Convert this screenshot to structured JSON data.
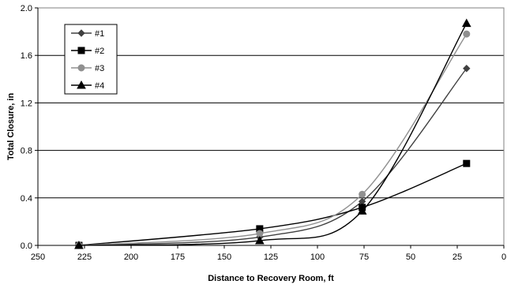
{
  "chart_data": {
    "type": "scatter",
    "title": "",
    "xlabel": "Distance to Recovery Room, ft",
    "ylabel": "Total Closure, in",
    "xlim": [
      250,
      0
    ],
    "ylim": [
      0,
      2.0
    ],
    "x_ticks": [
      "250",
      "225",
      "200",
      "175",
      "150",
      "125",
      "100",
      "75",
      "50",
      "25",
      "0"
    ],
    "y_ticks": [
      "0.0",
      "0.4",
      "0.8",
      "1.2",
      "1.6",
      "2.0"
    ],
    "grid": "horizontal",
    "legend_position": "top-left",
    "series": [
      {
        "name": "#1",
        "marker": "diamond",
        "color": "#404040",
        "x": [
          228,
          131,
          76,
          20
        ],
        "y": [
          0.0,
          0.07,
          0.37,
          1.49
        ]
      },
      {
        "name": "#2",
        "marker": "square",
        "color": "#000000",
        "x": [
          228,
          131,
          76,
          20
        ],
        "y": [
          0.0,
          0.14,
          0.32,
          0.69
        ]
      },
      {
        "name": "#3",
        "marker": "circle",
        "color": "#909090",
        "x": [
          228,
          131,
          76,
          20
        ],
        "y": [
          0.0,
          0.1,
          0.43,
          1.78
        ]
      },
      {
        "name": "#4",
        "marker": "triangle",
        "color": "#000000",
        "x": [
          228,
          131,
          76,
          20
        ],
        "y": [
          0.0,
          0.04,
          0.29,
          1.87
        ]
      }
    ]
  }
}
